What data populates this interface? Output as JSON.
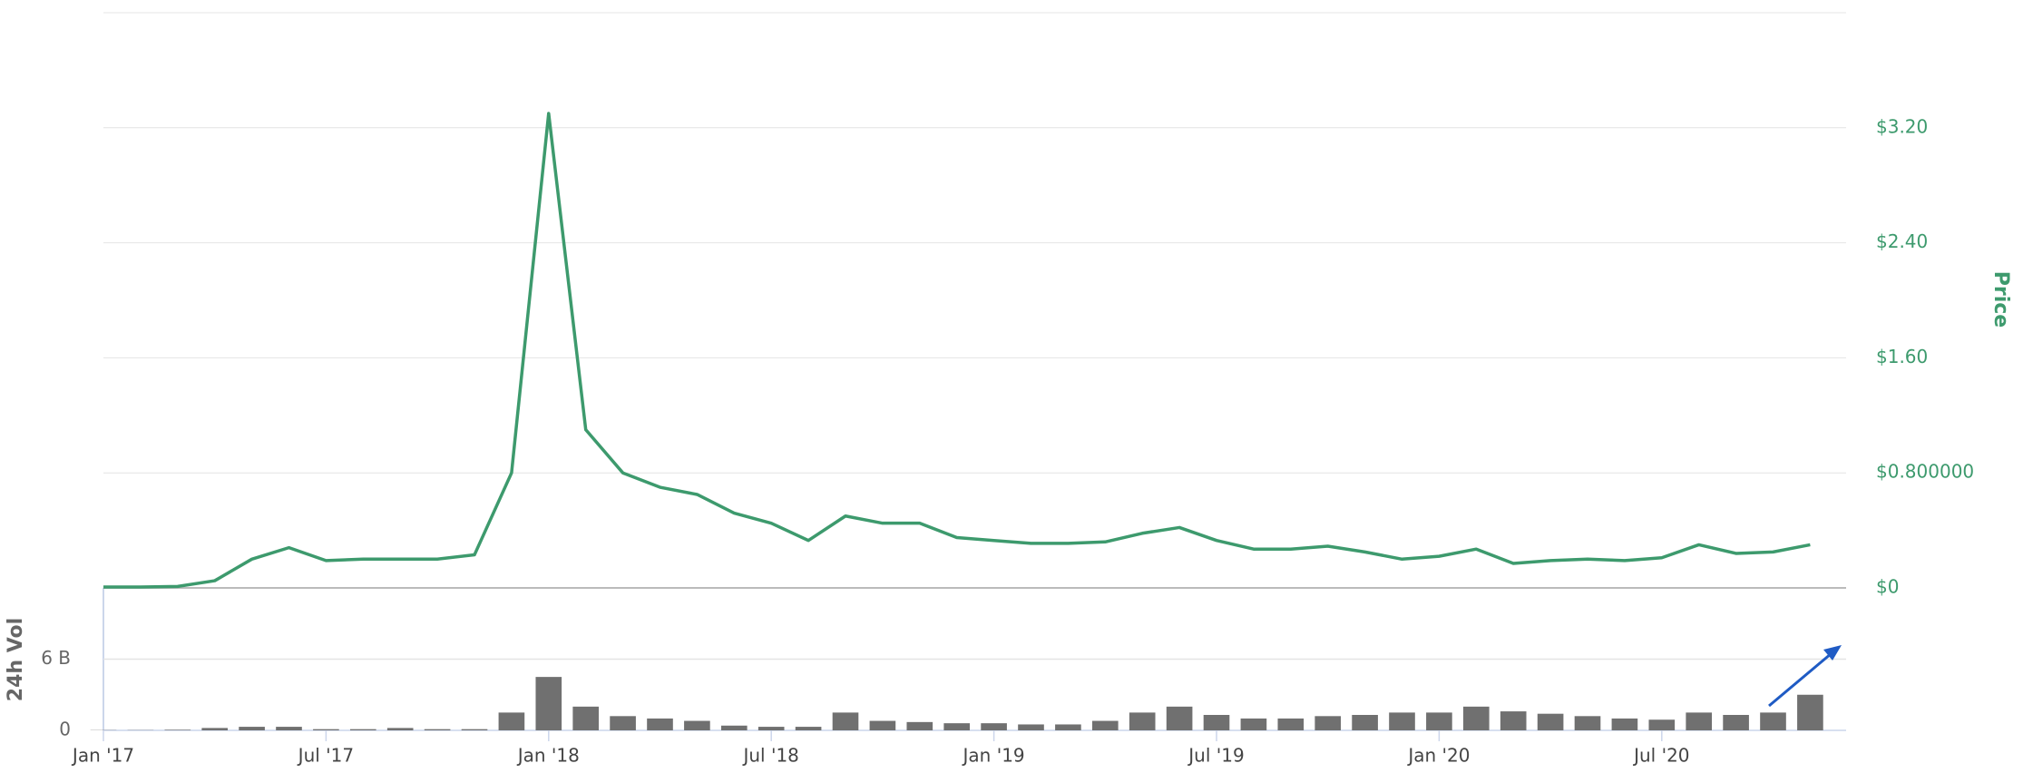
{
  "chart_data": {
    "type": "line",
    "categories": [
      "Jan '17",
      null,
      null,
      null,
      null,
      null,
      "Jul '17",
      null,
      null,
      null,
      null,
      null,
      "Jan '18",
      null,
      null,
      null,
      null,
      null,
      "Jul '18",
      null,
      null,
      null,
      null,
      null,
      "Jan '19",
      null,
      null,
      null,
      null,
      null,
      "Jul '19",
      null,
      null,
      null,
      null,
      null,
      "Jan '20",
      null,
      null,
      null,
      null,
      null,
      "Jul '20",
      null,
      null,
      null,
      null
    ],
    "series": [
      {
        "name": "Price",
        "color": "#3d9a6d",
        "values": [
          0.006,
          0.006,
          0.01,
          0.05,
          0.2,
          0.28,
          0.19,
          0.2,
          0.2,
          0.2,
          0.23,
          0.8,
          3.3,
          1.1,
          0.8,
          0.7,
          0.65,
          0.52,
          0.45,
          0.33,
          0.5,
          0.45,
          0.45,
          0.35,
          0.33,
          0.31,
          0.31,
          0.32,
          0.38,
          0.42,
          0.33,
          0.27,
          0.27,
          0.29,
          0.25,
          0.2,
          0.22,
          0.27,
          0.17,
          0.19,
          0.2,
          0.19,
          0.21,
          0.3,
          0.24,
          0.25,
          0.3
        ]
      },
      {
        "name": "24h Vol",
        "color": "#707070",
        "type": "bar",
        "axis": "y2",
        "values": [
          0.02,
          0.02,
          0.05,
          0.2,
          0.3,
          0.3,
          0.1,
          0.1,
          0.2,
          0.1,
          0.1,
          1.5,
          4.5,
          2,
          1.2,
          1,
          0.8,
          0.4,
          0.3,
          0.3,
          1.5,
          0.8,
          0.7,
          0.6,
          0.6,
          0.5,
          0.5,
          0.8,
          1.5,
          2.0,
          1.3,
          1.0,
          1.0,
          1.2,
          1.3,
          1.5,
          1.5,
          2.0,
          1.6,
          1.4,
          1.2,
          1.0,
          0.9,
          1.5,
          1.3,
          1.5,
          3.0
        ]
      }
    ],
    "ylim": [
      0,
      4
    ],
    "yticks": [
      {
        "value": 0,
        "label": "$0"
      },
      {
        "value": 0.8,
        "label": "$0.800000"
      },
      {
        "value": 1.6,
        "label": "$1.60"
      },
      {
        "value": 2.4,
        "label": "$2.40"
      },
      {
        "value": 3.2,
        "label": "$3.20"
      }
    ],
    "y2lim": [
      0,
      12
    ],
    "y2ticks": [
      0,
      {
        "value": 6,
        "label": "6 B"
      }
    ],
    "grid": true
  }
}
